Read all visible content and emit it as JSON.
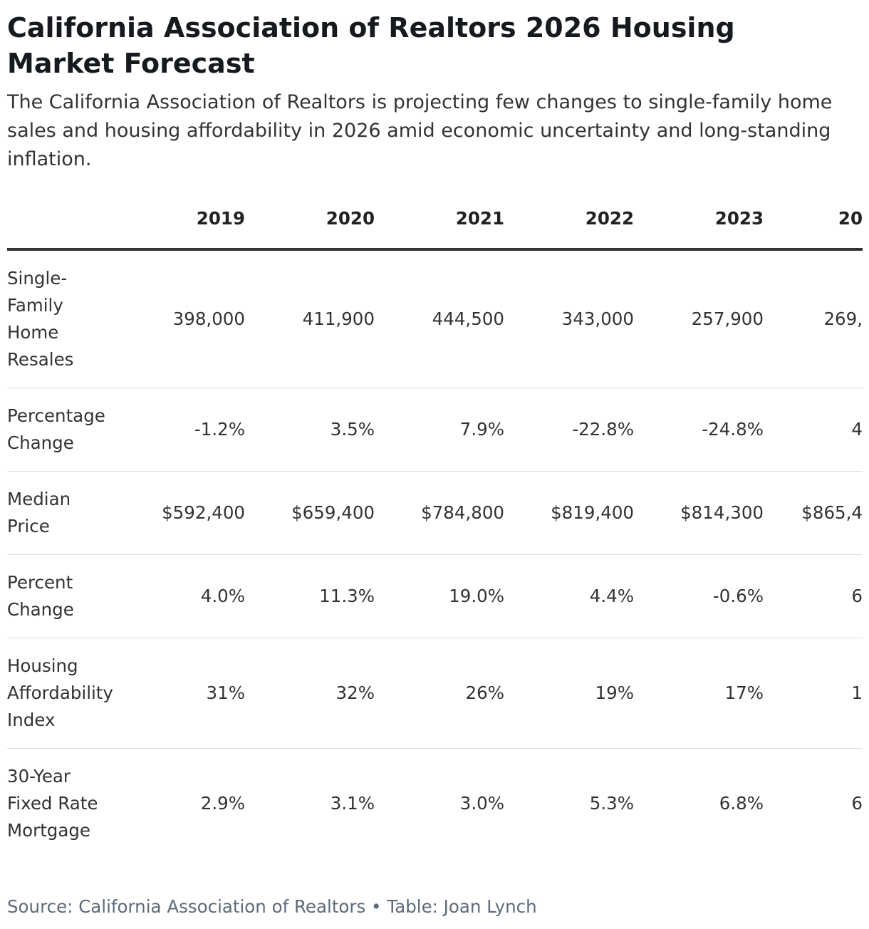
{
  "header": {
    "title": "California Association of Realtors 2026 Housing Market Forecast",
    "subtitle": "The California Association of Realtors is projecting few changes to single-family home sales and housing affordability in 2026 amid economic uncertainty and long-standing inflation."
  },
  "table": {
    "columns": [
      "2019",
      "2020",
      "2021",
      "2022",
      "2023",
      "20"
    ],
    "rows": [
      {
        "label": "Single-Family Home Resales",
        "values": [
          "398,000",
          "411,900",
          "444,500",
          "343,000",
          "257,900",
          "269,"
        ]
      },
      {
        "label": "Percentage Change",
        "values": [
          "-1.2%",
          "3.5%",
          "7.9%",
          "-22.8%",
          "-24.8%",
          "4"
        ]
      },
      {
        "label": "Median Price",
        "values": [
          "$592,400",
          "$659,400",
          "$784,800",
          "$819,400",
          "$814,300",
          "$865,4"
        ]
      },
      {
        "label": "Percent Change",
        "values": [
          "4.0%",
          "11.3%",
          "19.0%",
          "4.4%",
          "-0.6%",
          "6"
        ]
      },
      {
        "label": "Housing Affordability Index",
        "values": [
          "31%",
          "32%",
          "26%",
          "19%",
          "17%",
          "1"
        ]
      },
      {
        "label": "30-Year Fixed Rate Mortgage",
        "values": [
          "2.9%",
          "3.1%",
          "3.0%",
          "5.3%",
          "6.8%",
          "6"
        ]
      }
    ]
  },
  "footer": {
    "source": "Source: California Association of Realtors • Table: Joan Lynch"
  }
}
